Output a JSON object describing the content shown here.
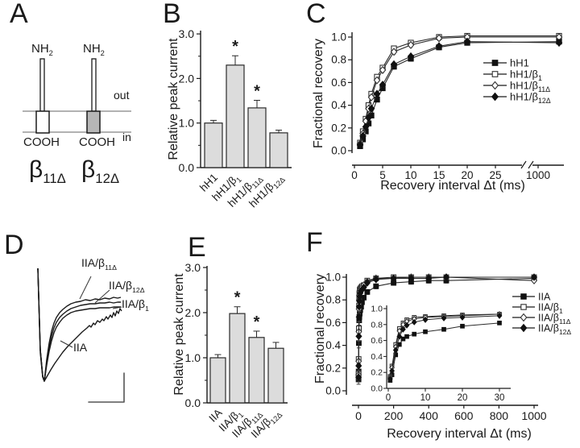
{
  "panels": {
    "A": {
      "letter": "A",
      "nh2_left": "NH{2}",
      "nh2_right": "NH{2}",
      "out_label": "out",
      "in_label": "in",
      "cooh_left": "COOH",
      "cooh_right": "COOH",
      "construct_left": "β{11Δ}",
      "construct_right": "β{12Δ}"
    },
    "B": {
      "letter": "B"
    },
    "C": {
      "letter": "C"
    },
    "D": {
      "letter": "D"
    },
    "E": {
      "letter": "E"
    },
    "F": {
      "letter": "F"
    }
  },
  "chart_data": [
    {
      "id": "B",
      "type": "bar",
      "title": "",
      "ylabel": "Relative peak current",
      "xlabel": "",
      "categories": [
        "hH1",
        "hH1/β{1}",
        "hH1/β{11Δ}",
        "hH1/β{12Δ}"
      ],
      "values": [
        1.0,
        2.3,
        1.34,
        0.78
      ],
      "errors": [
        0.06,
        0.21,
        0.17,
        0.06
      ],
      "significance": [
        "",
        "*",
        "*",
        ""
      ],
      "yticks": [
        0,
        1,
        2,
        3
      ],
      "ylim": [
        0,
        3
      ],
      "bar_fill": "#dcdcdc",
      "grid": false
    },
    {
      "id": "C",
      "type": "line",
      "title": "",
      "ylabel": "Fractional recovery",
      "xlabel": "Recovery interval Δt (ms)",
      "x": [
        1,
        1.5,
        2,
        2.5,
        3,
        4,
        5,
        7,
        10,
        15,
        20,
        1000
      ],
      "xticks": [
        0,
        5,
        10,
        15,
        20,
        25,
        1000
      ],
      "yticks": [
        0,
        0.2,
        0.4,
        0.6,
        0.8,
        1
      ],
      "ylim": [
        0,
        1.05
      ],
      "axis_break_after": 25,
      "legend_position": "right",
      "grid": false,
      "series": [
        {
          "name": "hH1",
          "marker": "square-filled",
          "values": [
            0.04,
            0.1,
            0.17,
            0.24,
            0.31,
            0.45,
            0.55,
            0.74,
            0.81,
            0.91,
            0.95,
            0.96
          ]
        },
        {
          "name": "hH1/β{1}",
          "marker": "square-open",
          "values": [
            0.07,
            0.17,
            0.28,
            0.4,
            0.5,
            0.65,
            0.73,
            0.9,
            0.95,
            1.0,
            1.01,
            1.01
          ]
        },
        {
          "name": "hH1/β{11Δ}",
          "marker": "diamond-open",
          "values": [
            0.06,
            0.15,
            0.26,
            0.37,
            0.47,
            0.62,
            0.71,
            0.87,
            0.93,
            0.99,
            1.0,
            1.0
          ]
        },
        {
          "name": "hH1/β{12Δ}",
          "marker": "diamond-filled",
          "values": [
            0.05,
            0.13,
            0.21,
            0.29,
            0.37,
            0.5,
            0.58,
            0.76,
            0.83,
            0.92,
            0.96,
            0.95
          ]
        }
      ]
    },
    {
      "id": "E",
      "type": "bar",
      "title": "",
      "ylabel": "Relative peak current",
      "xlabel": "",
      "categories": [
        "IIA",
        "IIA/β{1}",
        "IIA/β{11Δ}",
        "IIA/β{12Δ}"
      ],
      "values": [
        1.0,
        1.98,
        1.45,
        1.21
      ],
      "errors": [
        0.07,
        0.15,
        0.14,
        0.13
      ],
      "significance": [
        "",
        "*",
        "*",
        ""
      ],
      "yticks": [
        0,
        1,
        2,
        3
      ],
      "ylim": [
        0,
        3
      ],
      "bar_fill": "#dcdcdc",
      "grid": false
    },
    {
      "id": "F",
      "type": "line",
      "title": "",
      "ylabel": "Fractional recovery",
      "xlabel": "Recovery interval Δt (ms)",
      "x": [
        0.5,
        1,
        2,
        3,
        4,
        5,
        7,
        10,
        15,
        20,
        30,
        50,
        100,
        200,
        300,
        400,
        500,
        1000
      ],
      "xticks": [
        0,
        200,
        400,
        600,
        800,
        1000
      ],
      "yticks": [
        0,
        0.2,
        0.4,
        0.6,
        0.8,
        1
      ],
      "ylim": [
        0,
        1.05
      ],
      "legend_position": "right",
      "grid": false,
      "series": [
        {
          "name": "IIA",
          "marker": "square-filled",
          "values": [
            0.1,
            0.17,
            0.42,
            0.55,
            0.62,
            0.65,
            0.68,
            0.71,
            0.74,
            0.78,
            0.82,
            0.87,
            0.92,
            0.95,
            0.96,
            0.97,
            0.97,
            0.99
          ]
        },
        {
          "name": "IIA/β{1}",
          "marker": "square-open",
          "values": [
            0.15,
            0.28,
            0.55,
            0.75,
            0.82,
            0.86,
            0.89,
            0.9,
            0.91,
            0.92,
            0.93,
            0.97,
            0.99,
            1.0,
            1.0,
            1.0,
            1.0,
            1.0
          ]
        },
        {
          "name": "IIA/β{11Δ}",
          "marker": "diamond-open",
          "values": [
            0.14,
            0.26,
            0.52,
            0.72,
            0.8,
            0.84,
            0.87,
            0.89,
            0.9,
            0.91,
            0.93,
            0.96,
            0.99,
            0.99,
            1.0,
            1.0,
            1.0,
            0.97
          ]
        },
        {
          "name": "IIA/β{12Δ}",
          "marker": "diamond-filled",
          "values": [
            0.12,
            0.22,
            0.48,
            0.65,
            0.74,
            0.79,
            0.83,
            0.86,
            0.88,
            0.89,
            0.91,
            0.95,
            0.98,
            0.99,
            0.99,
            0.99,
            1.0,
            1.0
          ]
        }
      ],
      "inset": {
        "xticks": [
          0,
          10,
          20,
          30
        ],
        "yticks": [
          0,
          0.2,
          0.4,
          0.6,
          0.8,
          1
        ],
        "x_range": [
          0,
          33
        ],
        "note": "same data, expanded 0-33 ms"
      }
    },
    {
      "id": "D",
      "type": "traces",
      "title": "",
      "scale_bar": true,
      "traces": [
        {
          "name": "IIA/β{11Δ}",
          "points": [
            [
              47,
              333
            ],
            [
              50,
              434
            ],
            [
              53,
              467
            ],
            [
              55,
              473
            ],
            [
              58,
              446
            ],
            [
              61,
              426
            ],
            [
              64,
              411
            ],
            [
              67,
              401
            ],
            [
              70,
              394
            ],
            [
              74,
              388
            ],
            [
              78,
              384
            ],
            [
              83,
              380
            ],
            [
              88,
              377
            ],
            [
              94,
              375
            ],
            [
              100,
              374
            ],
            [
              106,
              372
            ],
            [
              112,
              373
            ],
            [
              118,
              371
            ],
            [
              124,
              372
            ],
            [
              130,
              370
            ],
            [
              136,
              371
            ],
            [
              141,
              369
            ],
            [
              146,
              370
            ],
            [
              150,
              369
            ]
          ]
        },
        {
          "name": "IIA/β{12Δ}",
          "points": [
            [
              47,
              333
            ],
            [
              50,
              434
            ],
            [
              53,
              467
            ],
            [
              55,
              473
            ],
            [
              58,
              450
            ],
            [
              61,
              431
            ],
            [
              64,
              417
            ],
            [
              67,
              407
            ],
            [
              70,
              400
            ],
            [
              74,
              394
            ],
            [
              78,
              390
            ],
            [
              83,
              386
            ],
            [
              88,
              383
            ],
            [
              94,
              381
            ],
            [
              100,
              379
            ],
            [
              106,
              378
            ],
            [
              112,
              377
            ],
            [
              118,
              377
            ],
            [
              124,
              376
            ],
            [
              130,
              376
            ],
            [
              136,
              375
            ],
            [
              141,
              376
            ],
            [
              146,
              375
            ],
            [
              150,
              375
            ]
          ]
        },
        {
          "name": "IIA/β{1}",
          "points": [
            [
              47,
              333
            ],
            [
              50,
              434
            ],
            [
              53,
              467
            ],
            [
              55,
              473
            ],
            [
              58,
              453
            ],
            [
              61,
              436
            ],
            [
              64,
              423
            ],
            [
              67,
              413
            ],
            [
              70,
              406
            ],
            [
              74,
              400
            ],
            [
              78,
              395
            ],
            [
              83,
              391
            ],
            [
              88,
              388
            ],
            [
              94,
              386
            ],
            [
              100,
              385
            ],
            [
              106,
              384
            ],
            [
              112,
              383
            ],
            [
              118,
              383
            ],
            [
              124,
              382
            ],
            [
              130,
              382
            ],
            [
              136,
              382
            ],
            [
              141,
              381
            ],
            [
              146,
              381
            ],
            [
              150,
              381
            ]
          ]
        },
        {
          "name": "IIA",
          "points": [
            [
              47,
              333
            ],
            [
              50,
              438
            ],
            [
              53,
              468
            ],
            [
              55,
              473
            ],
            [
              59,
              466
            ],
            [
              63,
              459
            ],
            [
              68,
              451
            ],
            [
              73,
              444
            ],
            [
              78,
              437
            ],
            [
              84,
              430
            ],
            [
              90,
              424
            ],
            [
              96,
              418
            ],
            [
              102,
              412
            ],
            [
              108,
              407
            ],
            [
              111,
              404
            ],
            [
              113,
              406
            ],
            [
              116,
              401
            ],
            [
              118,
              403
            ],
            [
              121,
              398
            ],
            [
              124,
              400
            ],
            [
              127,
              396
            ],
            [
              129,
              398
            ],
            [
              132,
              393
            ],
            [
              134,
              396
            ],
            [
              137,
              391
            ],
            [
              139,
              394
            ],
            [
              141,
              388
            ],
            [
              143,
              392
            ],
            [
              145,
              386
            ],
            [
              147,
              389
            ],
            [
              149,
              383
            ],
            [
              151,
              386
            ]
          ]
        }
      ]
    }
  ]
}
